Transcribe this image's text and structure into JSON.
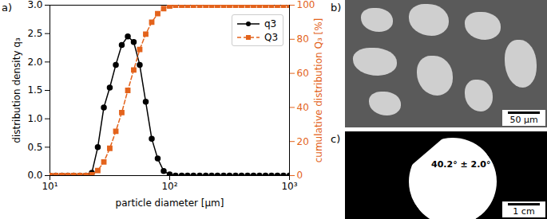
{
  "chart_data": {
    "type": "line",
    "panel_label": "a)",
    "x_label": "particle diameter [µm]",
    "y_label": "distribution density q₃",
    "y2_label": "cumulative distribution Q₃ [%]",
    "log": "x",
    "legend": "upper right",
    "grid": false,
    "x": [
      10,
      11.2,
      12.6,
      14.1,
      15.8,
      17.8,
      20,
      22.4,
      25.1,
      28.2,
      31.6,
      35.5,
      39.8,
      44.7,
      50.1,
      56.2,
      63.1,
      70.8,
      79.4,
      89.1,
      100,
      112,
      126,
      141,
      158,
      178,
      200,
      224,
      251,
      282,
      316,
      355,
      398,
      447,
      501,
      562,
      631,
      708,
      794,
      891,
      1000
    ],
    "series": [
      {
        "name": "q3",
        "color": "#000000",
        "marker": "circle",
        "line_style": "solid",
        "values": [
          0,
          0,
          0,
          0,
          0,
          0,
          0,
          0.05,
          0.5,
          1.2,
          1.55,
          1.95,
          2.3,
          2.45,
          2.35,
          1.95,
          1.3,
          0.65,
          0.3,
          0.08,
          0.02,
          0,
          0,
          0,
          0,
          0,
          0,
          0,
          0,
          0,
          0,
          0,
          0,
          0,
          0,
          0,
          0,
          0,
          0,
          0,
          0
        ]
      },
      {
        "name": "Q3",
        "color": "#e3631c",
        "marker": "square",
        "line_style": "dashed",
        "axis": "y2",
        "values": [
          0,
          0,
          0,
          0,
          0,
          0,
          0,
          0.5,
          3,
          8,
          16,
          26,
          37,
          50,
          62,
          74,
          83,
          90,
          95,
          98,
          99.5,
          100,
          100,
          100,
          100,
          100,
          100,
          100,
          100,
          100,
          100,
          100,
          100,
          100,
          100,
          100,
          100,
          100,
          100,
          100,
          100
        ]
      }
    ],
    "xlim": [
      10,
      1000
    ],
    "xticks": [
      {
        "value": 10,
        "label": "10¹"
      },
      {
        "value": 100,
        "label": "10²"
      },
      {
        "value": 1000,
        "label": "10³"
      }
    ],
    "ylim": [
      0,
      3
    ],
    "yticks": [
      {
        "value": 0,
        "label": "0.0"
      },
      {
        "value": 0.5,
        "label": "0.5"
      },
      {
        "value": 1,
        "label": "1.0"
      },
      {
        "value": 1.5,
        "label": "1.5"
      },
      {
        "value": 2,
        "label": "2.0"
      },
      {
        "value": 2.5,
        "label": "2.5"
      },
      {
        "value": 3,
        "label": "3.0"
      }
    ],
    "y2lim": [
      0,
      100
    ],
    "y2ticks": [
      0,
      20,
      40,
      60,
      80,
      100
    ]
  },
  "images": [
    {
      "panel_label": "b)",
      "scale_bar": "50 µm"
    },
    {
      "panel_label": "c)",
      "scale_bar": "1 cm",
      "annotation": "40.2° ± 2.0°"
    }
  ]
}
